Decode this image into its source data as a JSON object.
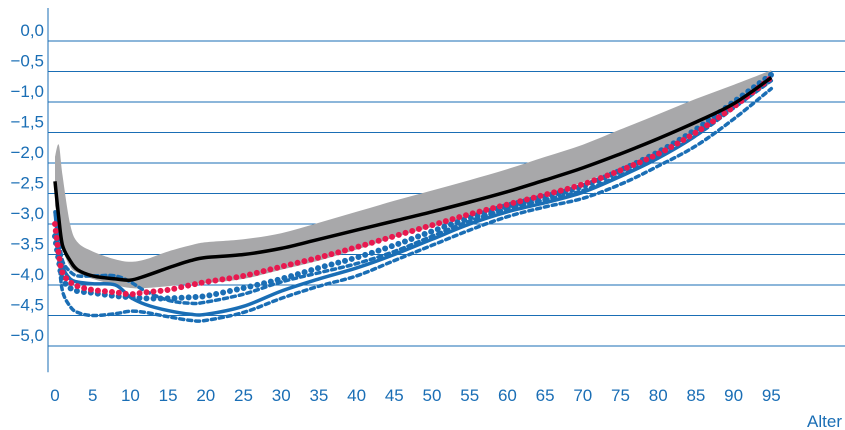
{
  "chart_data": {
    "type": "line",
    "title": "",
    "xlabel": "Alter",
    "ylabel": "",
    "xlim": [
      0,
      97
    ],
    "ylim": [
      -5.3,
      0.3
    ],
    "grid": "horizontal",
    "y_ticks": [
      0,
      -0.5,
      -1,
      -1.5,
      -2,
      -2.5,
      -3,
      -3.5,
      -4,
      -4.5,
      -5
    ],
    "y_tick_labels": [
      "0,0",
      "−0,5",
      "−1,0",
      "−1,5",
      "−2,0",
      "−2,5",
      "−3,0",
      "−3,5",
      "−4,0",
      "−4,5",
      "−5,0"
    ],
    "x_ticks": [
      0,
      5,
      10,
      15,
      20,
      25,
      30,
      35,
      40,
      45,
      50,
      55,
      60,
      65,
      70,
      75,
      80,
      85,
      90,
      95
    ],
    "x_tick_labels": [
      "0",
      "5",
      "10",
      "15",
      "20",
      "25",
      "30",
      "35",
      "40",
      "45",
      "50",
      "55",
      "60",
      "65",
      "70",
      "75",
      "80",
      "85",
      "90",
      "95"
    ],
    "colors": {
      "grid": "#1a6eb5",
      "text": "#1a6eb5",
      "band": "#a8a8aa",
      "black": "#000000",
      "red": "#e8194f",
      "blue": "#1a6eb5"
    },
    "band": {
      "x": [
        0,
        0.5,
        1,
        2,
        3,
        5,
        8,
        10,
        12,
        15,
        18,
        20,
        25,
        30,
        35,
        40,
        45,
        50,
        55,
        60,
        65,
        70,
        75,
        80,
        85,
        90,
        95
      ],
      "upper": [
        -1.9,
        -1.7,
        -2.2,
        -3.0,
        -3.3,
        -3.45,
        -3.58,
        -3.62,
        -3.58,
        -3.45,
        -3.35,
        -3.3,
        -3.25,
        -3.15,
        -2.98,
        -2.8,
        -2.62,
        -2.45,
        -2.28,
        -2.1,
        -1.9,
        -1.7,
        -1.45,
        -1.2,
        -0.95,
        -0.72,
        -0.48
      ],
      "lower": [
        -2.7,
        -3.0,
        -3.4,
        -3.7,
        -3.8,
        -3.9,
        -4.0,
        -4.05,
        -4.05,
        -4.02,
        -3.98,
        -3.97,
        -3.9,
        -3.75,
        -3.6,
        -3.42,
        -3.22,
        -3.05,
        -2.87,
        -2.7,
        -2.52,
        -2.32,
        -2.08,
        -1.8,
        -1.5,
        -1.12,
        -0.68
      ]
    },
    "series": [
      {
        "style": "solid-black",
        "x": [
          0,
          0.5,
          1,
          2,
          3,
          5,
          8,
          10,
          12,
          15,
          18,
          20,
          25,
          30,
          35,
          40,
          45,
          50,
          55,
          60,
          65,
          70,
          75,
          80,
          85,
          90,
          95
        ],
        "values": [
          -2.3,
          -2.9,
          -3.35,
          -3.6,
          -3.75,
          -3.85,
          -3.9,
          -3.92,
          -3.85,
          -3.72,
          -3.6,
          -3.55,
          -3.5,
          -3.4,
          -3.25,
          -3.1,
          -2.95,
          -2.8,
          -2.64,
          -2.47,
          -2.28,
          -2.08,
          -1.85,
          -1.6,
          -1.33,
          -1.03,
          -0.6
        ]
      },
      {
        "style": "dotted-red",
        "x": [
          0,
          0.5,
          1,
          2,
          3,
          5,
          8,
          10,
          12,
          15,
          18,
          20,
          25,
          30,
          35,
          40,
          45,
          50,
          55,
          60,
          65,
          70,
          75,
          80,
          85,
          90,
          95
        ],
        "values": [
          -3.0,
          -3.5,
          -3.8,
          -3.95,
          -4.02,
          -4.08,
          -4.12,
          -4.15,
          -4.12,
          -4.08,
          -4.0,
          -3.95,
          -3.85,
          -3.7,
          -3.55,
          -3.38,
          -3.2,
          -3.02,
          -2.84,
          -2.68,
          -2.52,
          -2.35,
          -2.12,
          -1.85,
          -1.5,
          -1.08,
          -0.6
        ]
      },
      {
        "style": "solid-blue",
        "x": [
          0,
          0.5,
          1,
          2,
          3,
          5,
          8,
          10,
          12,
          15,
          18,
          20,
          25,
          30,
          35,
          40,
          45,
          50,
          55,
          60,
          65,
          70,
          75,
          80,
          85,
          90,
          95
        ],
        "values": [
          -2.8,
          -3.4,
          -3.7,
          -3.9,
          -3.95,
          -3.98,
          -4.0,
          -4.2,
          -4.32,
          -4.42,
          -4.48,
          -4.48,
          -4.35,
          -4.1,
          -3.9,
          -3.72,
          -3.5,
          -3.25,
          -3.0,
          -2.8,
          -2.65,
          -2.48,
          -2.22,
          -1.92,
          -1.55,
          -1.05,
          -0.62
        ]
      },
      {
        "style": "dotted-blue",
        "x": [
          0,
          0.5,
          1,
          2,
          3,
          5,
          8,
          10,
          12,
          15,
          18,
          20,
          25,
          30,
          35,
          40,
          45,
          50,
          55,
          60,
          65,
          70,
          75,
          80,
          85,
          90,
          95
        ],
        "values": [
          -3.2,
          -3.6,
          -3.9,
          -4.05,
          -4.1,
          -4.13,
          -4.18,
          -4.2,
          -4.22,
          -4.22,
          -4.2,
          -4.18,
          -4.05,
          -3.9,
          -3.72,
          -3.55,
          -3.35,
          -3.12,
          -2.9,
          -2.7,
          -2.55,
          -2.38,
          -2.12,
          -1.82,
          -1.45,
          -1.0,
          -0.55
        ]
      },
      {
        "style": "dashed-blue",
        "x": [
          0,
          0.5,
          1,
          2,
          3,
          5,
          8,
          10,
          12,
          15,
          18,
          20,
          25,
          30,
          35,
          40,
          45,
          50,
          55,
          60,
          65,
          70,
          75,
          80,
          85,
          90,
          95
        ],
        "values": [
          -2.8,
          -3.2,
          -3.6,
          -3.78,
          -3.85,
          -3.85,
          -3.85,
          -3.95,
          -4.1,
          -4.25,
          -4.3,
          -4.28,
          -4.15,
          -3.95,
          -3.8,
          -3.65,
          -3.45,
          -3.2,
          -2.95,
          -2.75,
          -2.6,
          -2.45,
          -2.2,
          -1.9,
          -1.55,
          -1.1,
          -0.65
        ]
      },
      {
        "style": "dashed-blue",
        "x": [
          0,
          0.5,
          1,
          2,
          3,
          5,
          8,
          10,
          12,
          15,
          18,
          20,
          25,
          30,
          35,
          40,
          45,
          50,
          55,
          60,
          65,
          70,
          75,
          80,
          85,
          90,
          95
        ],
        "values": [
          -3.1,
          -3.6,
          -4.1,
          -4.35,
          -4.45,
          -4.5,
          -4.47,
          -4.43,
          -4.45,
          -4.52,
          -4.58,
          -4.58,
          -4.45,
          -4.22,
          -4.02,
          -3.85,
          -3.6,
          -3.35,
          -3.1,
          -2.88,
          -2.72,
          -2.58,
          -2.35,
          -2.05,
          -1.72,
          -1.28,
          -0.78
        ]
      }
    ]
  }
}
